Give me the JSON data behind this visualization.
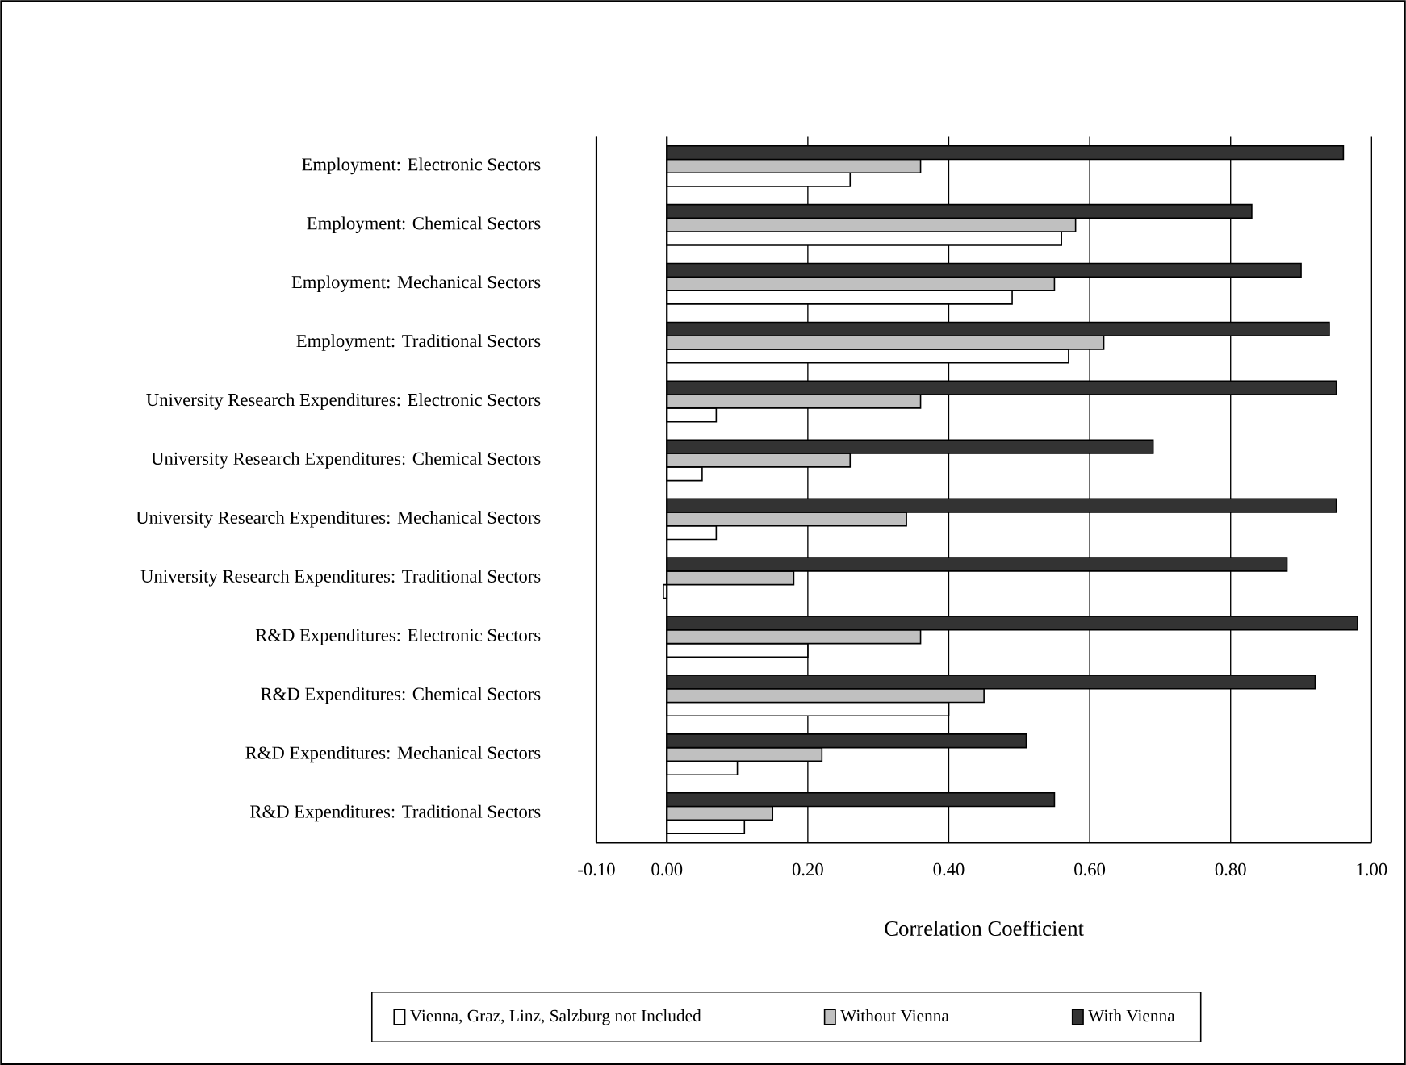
{
  "chart_data": {
    "type": "bar",
    "orientation": "horizontal",
    "categories": [
      "Employment: Electronic Sectors",
      "Employment: Chemical Sectors",
      "Employment: Mechanical Sectors",
      "Employment: Traditional Sectors",
      "University Research Expenditures: Electronic Sectors",
      "University Research Expenditures: Chemical Sectors",
      "University Research Expenditures: Mechanical Sectors",
      "University Research Expenditures: Traditional Sectors",
      "R&D Expenditures: Electronic Sectors",
      "R&D Expenditures: Chemical Sectors",
      "R&D Expenditures: Mechanical Sectors",
      "R&D Expenditures: Traditional Sectors"
    ],
    "series": [
      {
        "name": "Vienna, Graz, Linz, Salzburg not Included",
        "color": "#ffffff",
        "values": [
          0.26,
          0.56,
          0.49,
          0.57,
          0.07,
          0.05,
          0.07,
          -0.005,
          0.2,
          0.4,
          0.1,
          0.11
        ]
      },
      {
        "name": "Without Vienna",
        "color": "#c0c0c0",
        "values": [
          0.36,
          0.58,
          0.55,
          0.62,
          0.36,
          0.26,
          0.34,
          0.18,
          0.36,
          0.45,
          0.22,
          0.15
        ]
      },
      {
        "name": "With Vienna",
        "color": "#333333",
        "values": [
          0.96,
          0.83,
          0.9,
          0.94,
          0.95,
          0.69,
          0.95,
          0.88,
          0.98,
          0.92,
          0.51,
          0.55
        ]
      }
    ],
    "xlabel": "Correlation Coefficient",
    "xlim": [
      -0.1,
      1.0
    ],
    "xticks": [
      {
        "value": -0.1,
        "label": "-0.10"
      },
      {
        "value": 0,
        "label": "0.00"
      },
      {
        "value": 0.2,
        "label": "0.20"
      },
      {
        "value": 0.4,
        "label": "0.40"
      },
      {
        "value": 0.6,
        "label": "0.60"
      },
      {
        "value": 0.8,
        "label": "0.80"
      },
      {
        "value": 1.0,
        "label": "1.00"
      }
    ],
    "grid": "x",
    "legend": "bottom"
  }
}
